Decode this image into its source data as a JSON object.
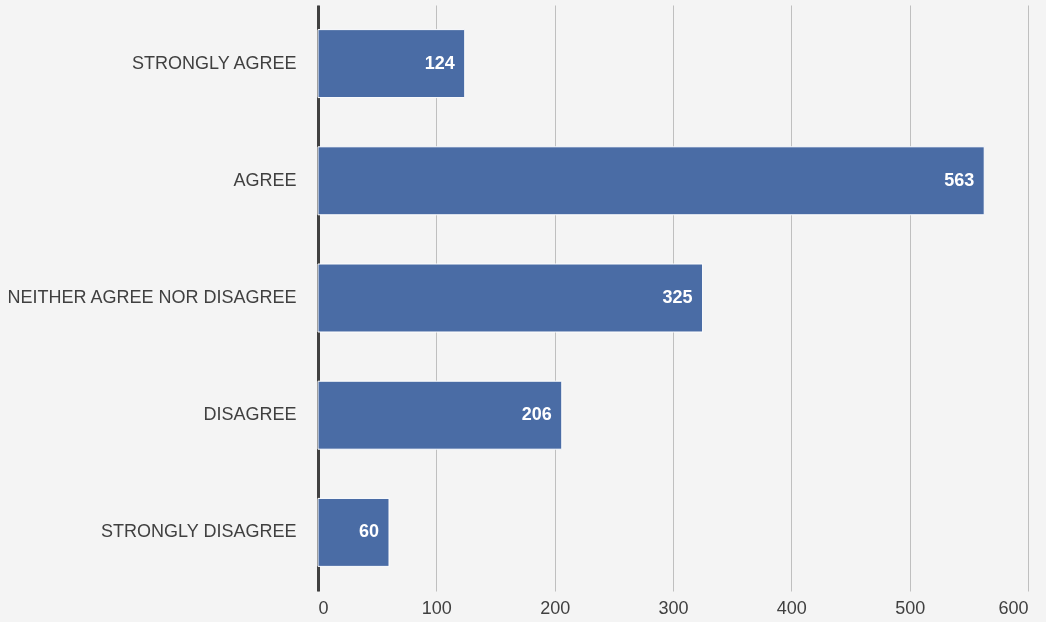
{
  "chart_data": {
    "type": "bar",
    "orientation": "horizontal",
    "categories": [
      "STRONGLY AGREE",
      "AGREE",
      "NEITHER AGREE NOR DISAGREE",
      "DISAGREE",
      "STRONGLY DISAGREE"
    ],
    "values": [
      124,
      563,
      325,
      206,
      60
    ],
    "color": "#4a6ca5",
    "xlim": [
      0,
      600
    ],
    "xticks": [
      0,
      100,
      200,
      300,
      400,
      500,
      600
    ],
    "grid": "x",
    "data_labels": true
  }
}
